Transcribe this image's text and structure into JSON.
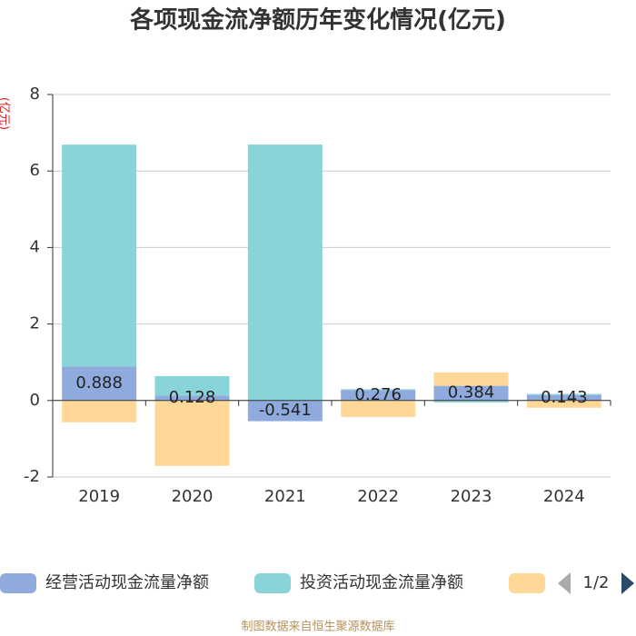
{
  "chart_data": {
    "type": "bar",
    "stacked": true,
    "title": "各项现金流净额历年变化情况(亿元)",
    "y_label": "(亿元)",
    "source": "制图数据来自恒生聚源数据库",
    "legend_page": "1/2",
    "categories": [
      "2019",
      "2020",
      "2021",
      "2022",
      "2023",
      "2024"
    ],
    "series": [
      {
        "name": "经营活动现金流量净额",
        "color": "#8faadc",
        "show_values": true,
        "values": [
          0.888,
          0.128,
          -0.541,
          0.276,
          0.384,
          0.143
        ]
      },
      {
        "name": "投资活动现金流量净额",
        "color": "#88d4d9",
        "values": [
          5.8,
          0.51,
          6.69,
          0.02,
          -0.05,
          0.03
        ]
      },
      {
        "color": "#ffd796",
        "values": [
          -0.57,
          -1.71,
          0,
          -0.43,
          0.35,
          -0.19
        ]
      }
    ],
    "ylim": [
      -2,
      8
    ],
    "yticks": [
      -2,
      0,
      2,
      4,
      6,
      8
    ],
    "grid": true
  }
}
